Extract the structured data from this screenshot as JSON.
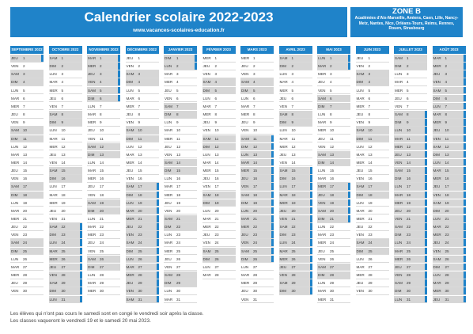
{
  "header": {
    "title": "Calendrier scolaire 2022-2023",
    "site": "www.vacances-scolaires-education.fr"
  },
  "zone": {
    "title": "ZONE B",
    "academies": "Académies d'Aix-Marseille, Amiens, Caen, Lille, Nancy-Metz, Nantes, Nice, Orléans-Tours, Reims, Rennes, Rouen, Strasbourg"
  },
  "footer": {
    "line1": "Les élèves qui n'ont pas cours le samedi sont en congé le vendredi soir après la classe.",
    "line2": "Les classes vaqueront le vendredi 19 et le samedi 20 mai 2023."
  },
  "accent_color": "#1f83c9",
  "months": [
    {
      "name": "SEPTEMBRE 2022",
      "start": 3,
      "days": 30,
      "vac": [
        1
      ]
    },
    {
      "name": "OCTOBRE 2022",
      "start": 5,
      "days": 31,
      "vac": [
        22,
        23,
        24,
        25,
        26,
        27,
        28,
        29,
        30,
        31
      ]
    },
    {
      "name": "NOVEMBRE 2022",
      "start": 1,
      "days": 30,
      "vac": [
        1,
        2,
        3,
        4,
        5,
        6
      ]
    },
    {
      "name": "DÉCEMBRE 2022",
      "start": 3,
      "days": 31,
      "vac": [
        17,
        18,
        19,
        20,
        21,
        22,
        23,
        24,
        25,
        26,
        27,
        28,
        29,
        30,
        31
      ]
    },
    {
      "name": "JANVIER 2023",
      "start": 6,
      "days": 31,
      "vac": [
        1,
        2
      ]
    },
    {
      "name": "FÉVRIER 2023",
      "start": 2,
      "days": 28,
      "vac": []
    },
    {
      "name": "MARS 2023",
      "start": 2,
      "days": 31,
      "vac": [
        11,
        12,
        13,
        14,
        15,
        16,
        17,
        18,
        19,
        20,
        21,
        22,
        23,
        24,
        25,
        26
      ]
    },
    {
      "name": "AVRIL 2023",
      "start": 5,
      "days": 30,
      "vac": [
        15,
        16,
        17,
        18,
        19,
        20,
        21,
        22,
        23,
        24,
        25,
        26,
        27,
        28,
        29,
        30
      ]
    },
    {
      "name": "MAI 2023",
      "start": 0,
      "days": 31,
      "vac": [
        1,
        2,
        17,
        18,
        19,
        20,
        21
      ]
    },
    {
      "name": "JUIN 2023",
      "start": 3,
      "days": 30,
      "vac": []
    },
    {
      "name": "JUILLET 2023",
      "start": 5,
      "days": 31,
      "vac": [
        8,
        9,
        10,
        11,
        12,
        13,
        14,
        15,
        16,
        17,
        18,
        19,
        20,
        21,
        22,
        23,
        24,
        25,
        26,
        27,
        28,
        29,
        30,
        31
      ]
    },
    {
      "name": "AOÛT 2023",
      "start": 1,
      "days": 31,
      "vac": [
        1,
        2,
        3,
        4,
        5,
        6,
        7,
        8,
        9,
        10,
        11,
        12,
        13,
        14,
        15,
        16,
        17,
        18,
        19,
        20,
        21,
        22,
        23,
        24,
        25,
        26,
        27,
        28,
        29,
        30,
        31
      ]
    }
  ],
  "weekday_names": [
    "LUN",
    "MAR",
    "MER",
    "JEU",
    "VEN",
    "SAM",
    "DIM"
  ]
}
